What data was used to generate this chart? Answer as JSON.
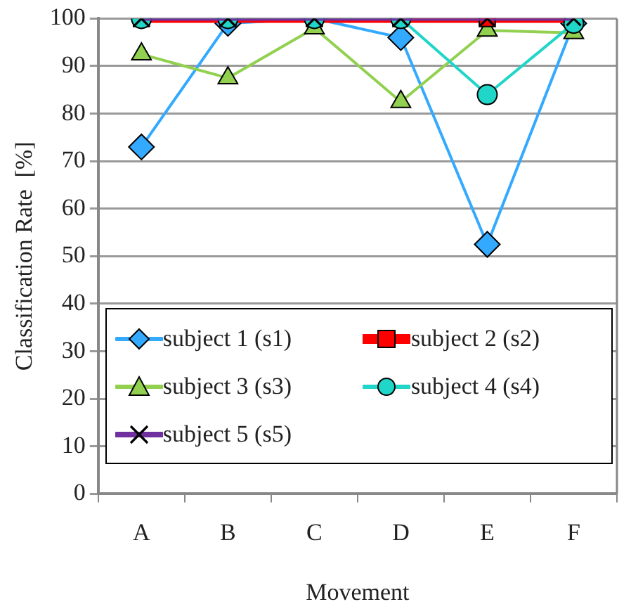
{
  "chart_data": {
    "type": "line",
    "xlabel": "Movement",
    "ylabel": "Classification Rate  [%]",
    "categories": [
      "A",
      "B",
      "C",
      "D",
      "E",
      "F"
    ],
    "ylim": [
      0,
      100
    ],
    "yticks": [
      0,
      10,
      20,
      30,
      40,
      50,
      60,
      70,
      80,
      90,
      100
    ],
    "grid": "y",
    "legend": "bottom",
    "series": [
      {
        "name": "subject 1 (s1)",
        "color": "#33aaff",
        "marker": "diamond",
        "values": [
          73,
          99,
          100,
          96,
          52.5,
          99
        ]
      },
      {
        "name": "subject 2 (s2)",
        "color": "#ff0000",
        "marker": "square",
        "values": [
          100,
          100,
          100,
          100,
          100,
          100
        ]
      },
      {
        "name": "subject 3 (s3)",
        "color": "#92d050",
        "marker": "triangle",
        "values": [
          92.5,
          87.5,
          98,
          82.5,
          97.5,
          97
        ]
      },
      {
        "name": "subject 4 (s4)",
        "color": "#1fd6c8",
        "marker": "circle",
        "values": [
          100,
          100,
          100,
          100,
          84,
          99
        ]
      },
      {
        "name": "subject 5 (s5)",
        "color": "#7030a0",
        "marker": "cross",
        "values": [
          100,
          100,
          100,
          100,
          100,
          100
        ]
      }
    ]
  }
}
